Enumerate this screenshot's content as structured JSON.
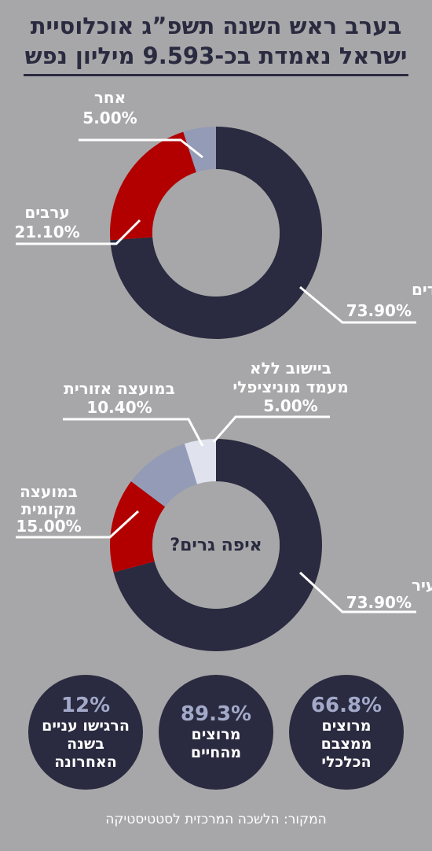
{
  "title_lines": [
    "בערב ראש השנה תשפ”ג אוכלוסיית",
    "ישראל נאמדת בכ-9.593 מיליון נפש"
  ],
  "chart_data": [
    {
      "type": "pie",
      "donut": true,
      "title": "",
      "center_label": "",
      "slices": [
        {
          "name": "יהודים",
          "value": 73.9,
          "label": "73.90%",
          "color": "#2a2a40"
        },
        {
          "name": "ערבים",
          "value": 21.1,
          "label": "21.10%",
          "color": "#b20000"
        },
        {
          "name": "אחר",
          "value": 5.0,
          "label": "5.00%",
          "color": "#939bb7"
        }
      ]
    },
    {
      "type": "pie",
      "donut": true,
      "title": "",
      "center_label": "איפה גרים?",
      "slices": [
        {
          "name": "בעיר",
          "value": 73.9,
          "label": "73.90%",
          "color": "#2a2a40"
        },
        {
          "name": "במועצה מקומית",
          "value": 15.0,
          "label": "15.00%",
          "color": "#b20000"
        },
        {
          "name": "במועצה אזורית",
          "value": 10.4,
          "label": "10.40%",
          "color": "#939bb7"
        },
        {
          "name": "ביישוב ללא מעמד מוניציפלי",
          "value": 5.0,
          "label": "5.00%",
          "color": "#e0e3ee"
        }
      ]
    }
  ],
  "stats": [
    {
      "pct": "66.8%",
      "desc": "מרוצים ממצבם הכלכלי"
    },
    {
      "pct": "89.3%",
      "desc": "מרוצים מהחיים"
    },
    {
      "pct": "12%",
      "desc": "הרגישו עניים בשנה האחרונה"
    }
  ],
  "source": "המקור: הלשכה המרכזית לסטטיסטיקה",
  "colors": {
    "background": "#a7a7a9",
    "navy": "#2a2a40",
    "red": "#b20000",
    "slate": "#939bb7",
    "accent": "#a3aac9"
  }
}
